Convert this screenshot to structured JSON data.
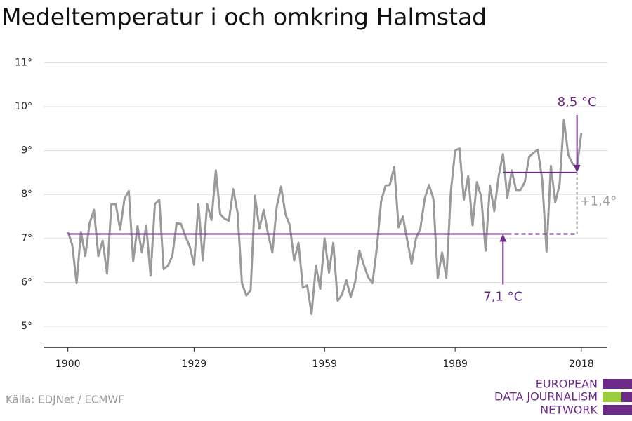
{
  "chart_data": {
    "type": "line",
    "title": "Medeltemperatur i och omkring Halmstad",
    "source": "Källa: EDJNet / ECMWF",
    "logo": [
      "EUROPEAN",
      "DATA JOURNALISM",
      "NETWORK"
    ],
    "x": [
      1900,
      1901,
      1902,
      1903,
      1904,
      1905,
      1906,
      1907,
      1908,
      1909,
      1910,
      1911,
      1912,
      1913,
      1914,
      1915,
      1916,
      1917,
      1918,
      1919,
      1920,
      1921,
      1922,
      1923,
      1924,
      1925,
      1926,
      1927,
      1928,
      1929,
      1930,
      1931,
      1932,
      1933,
      1934,
      1935,
      1936,
      1937,
      1938,
      1939,
      1940,
      1941,
      1942,
      1943,
      1944,
      1945,
      1946,
      1947,
      1948,
      1949,
      1950,
      1951,
      1952,
      1953,
      1954,
      1955,
      1956,
      1957,
      1958,
      1959,
      1960,
      1961,
      1962,
      1963,
      1964,
      1965,
      1966,
      1967,
      1968,
      1969,
      1970,
      1971,
      1972,
      1973,
      1974,
      1975,
      1976,
      1977,
      1978,
      1979,
      1980,
      1981,
      1982,
      1983,
      1984,
      1985,
      1986,
      1987,
      1988,
      1989,
      1990,
      1991,
      1992,
      1993,
      1994,
      1995,
      1996,
      1997,
      1998,
      1999,
      2000,
      2001,
      2002,
      2003,
      2004,
      2005,
      2006,
      2007,
      2008,
      2009,
      2010,
      2011,
      2012,
      2013,
      2014,
      2015,
      2016,
      2017,
      2018
    ],
    "series": [
      {
        "color": "#9a9a9a",
        "values": [
          7.15,
          6.85,
          5.98,
          7.15,
          6.6,
          7.35,
          7.65,
          6.6,
          6.95,
          6.2,
          7.78,
          7.78,
          7.2,
          7.9,
          8.08,
          6.48,
          7.28,
          6.68,
          7.3,
          6.15,
          7.78,
          7.88,
          6.3,
          6.38,
          6.6,
          7.35,
          7.33,
          7.05,
          6.82,
          6.4,
          7.78,
          6.5,
          7.78,
          7.42,
          8.55,
          7.55,
          7.45,
          7.4,
          8.12,
          7.58,
          5.98,
          5.7,
          5.82,
          7.97,
          7.22,
          7.65,
          7.1,
          6.68,
          7.72,
          8.18,
          7.55,
          7.3,
          6.5,
          6.9,
          5.88,
          5.93,
          5.28,
          6.38,
          5.85,
          7.0,
          6.22,
          6.9,
          5.58,
          5.72,
          6.05,
          5.67,
          6.0,
          6.72,
          6.4,
          6.12,
          5.98,
          6.78,
          7.85,
          8.2,
          8.22,
          8.63,
          7.25,
          7.5,
          6.95,
          6.43,
          7.0,
          7.22,
          7.9,
          8.22,
          7.9,
          6.1,
          6.68,
          6.1,
          8.05,
          9.0,
          9.05,
          7.88,
          8.42,
          7.3,
          8.28,
          7.95,
          6.72,
          8.2,
          7.62,
          8.42,
          8.92,
          7.92,
          8.55,
          8.1,
          8.1,
          8.28,
          8.85,
          8.95,
          9.02,
          8.35,
          6.7,
          8.65,
          7.82,
          8.22,
          9.7,
          8.9,
          8.7,
          8.6,
          9.4
        ]
      }
    ],
    "xlim": [
      1894.4,
      2024
    ],
    "xticks": [
      1900,
      1929,
      1959,
      1989,
      2018
    ],
    "ylim": [
      4.52,
      11.15
    ],
    "yticks": [
      {
        "value": 5,
        "label": "5°"
      },
      {
        "value": 6,
        "label": "6°"
      },
      {
        "value": 7,
        "label": "7°"
      },
      {
        "value": 8,
        "label": "8°"
      },
      {
        "value": 9,
        "label": "9°"
      },
      {
        "value": 10,
        "label": "10°"
      },
      {
        "value": 11,
        "label": "11°"
      }
    ],
    "grid": true,
    "reference_lines": [
      {
        "value": 7.1,
        "label": "7,1 °C",
        "x": [
          1900,
          2017
        ],
        "dashed_from": 2001,
        "arrow_x": 2000,
        "color": "#6b2a86"
      },
      {
        "value": 8.5,
        "label": "8,5 °C",
        "x": [
          2000,
          2017
        ],
        "arrow_x": 2017,
        "color": "#6b2a86"
      }
    ],
    "difference": {
      "label": "+1,4°",
      "x": 2017,
      "color": "#a0a0a0"
    }
  }
}
